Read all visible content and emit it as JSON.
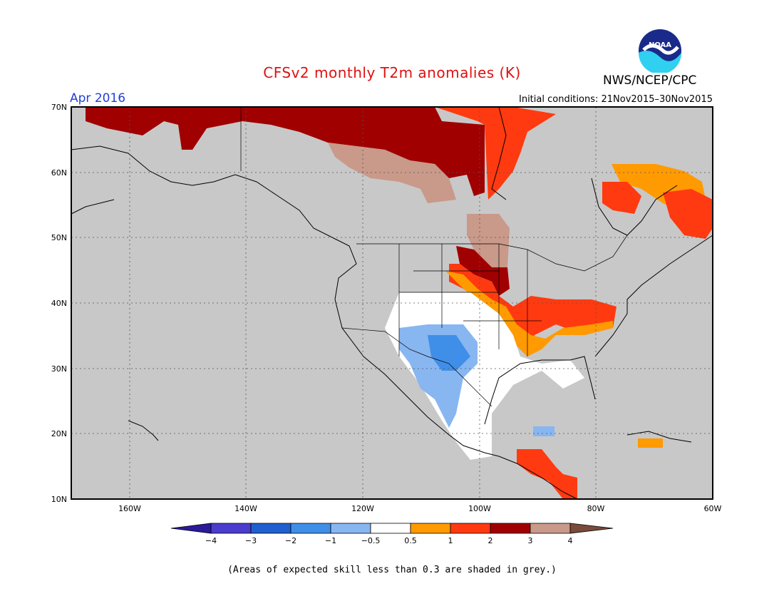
{
  "title": "CFSv2 monthly T2m anomalies (K)",
  "agency": "NWS/NCEP/CPC",
  "logo_text": "NOAA",
  "valid_month": "Apr 2016",
  "initial_conditions": "Initial conditions: 21Nov2015–30Nov2015",
  "footnote": "(Areas of expected skill less than 0.3 are shaded in grey.)",
  "map": {
    "lon_range": [
      -170,
      -60
    ],
    "lat_range": [
      10,
      70
    ],
    "lat_ticks": [
      "70N",
      "60N",
      "50N",
      "40N",
      "30N",
      "20N",
      "10N"
    ],
    "lon_ticks": [
      "160W",
      "140W",
      "120W",
      "100W",
      "80W",
      "60W"
    ],
    "grid": "dotted"
  },
  "colorbar": {
    "labels": [
      "−4",
      "−3",
      "−2",
      "−1",
      "−0.5",
      "0.5",
      "1",
      "2",
      "3",
      "4"
    ],
    "colors": [
      "#2a1a9a",
      "#4a3ccc",
      "#1f5fd0",
      "#3f8fe8",
      "#88b6f0",
      "#ffffff",
      "#ff9a00",
      "#ff3a10",
      "#a00000",
      "#c9998a",
      "#7a4a3a"
    ],
    "no_skill_color": "#c8c8c8"
  },
  "colors": {
    "title": "#e01010",
    "valid_month": "#1f3fd8",
    "map_background": "#c8c8c8"
  }
}
